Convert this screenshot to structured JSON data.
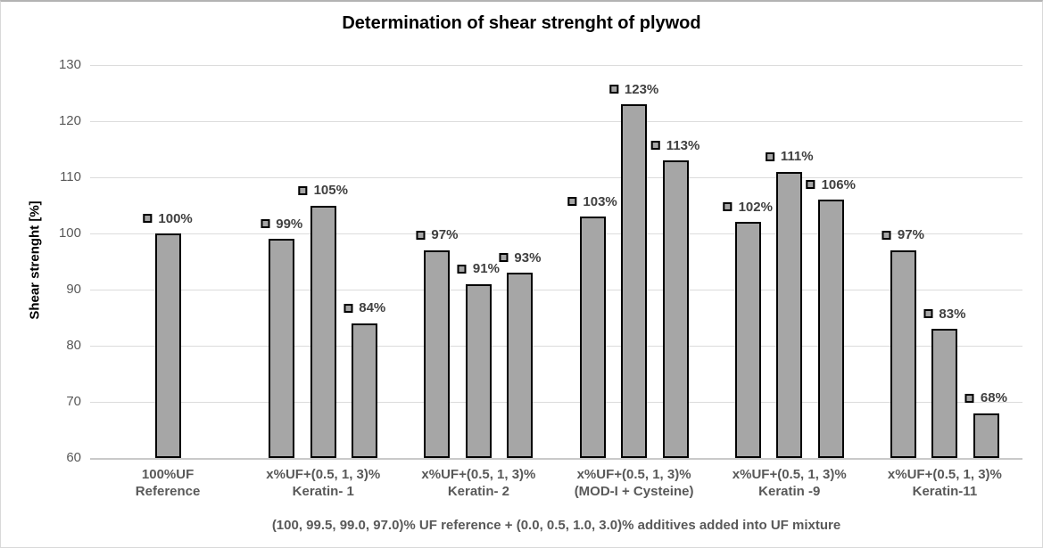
{
  "chart_data": {
    "type": "bar",
    "title": "Determination of shear strenght of plywod",
    "ylabel": "Shear strenght [%]",
    "xlabel": "(100, 99.5, 99.0, 97.0)% UF reference + (0.0, 0.5, 1.0, 3.0)% additives added into UF mixture",
    "ylim": [
      60,
      130
    ],
    "yticks": [
      130,
      120,
      110,
      100,
      90,
      80,
      70,
      60
    ],
    "grid": true,
    "legend_position": "none",
    "data_label_format": "{v}%",
    "groups": [
      {
        "label_lines": [
          "100%UF",
          "Reference"
        ],
        "values": [
          100
        ]
      },
      {
        "label_lines": [
          "x%UF+(0.5, 1, 3)%",
          "Keratin- 1"
        ],
        "values": [
          99,
          105,
          84
        ]
      },
      {
        "label_lines": [
          "x%UF+(0.5, 1, 3)%",
          "Keratin- 2"
        ],
        "values": [
          97,
          91,
          93
        ]
      },
      {
        "label_lines": [
          "x%UF+(0.5, 1, 3)%",
          "(MOD-I + Cysteine)"
        ],
        "values": [
          103,
          123,
          113
        ]
      },
      {
        "label_lines": [
          "x%UF+(0.5, 1, 3)%",
          "Keratin -9"
        ],
        "values": [
          102,
          111,
          106
        ]
      },
      {
        "label_lines": [
          "x%UF+(0.5, 1, 3)%",
          "Keratin-11"
        ],
        "values": [
          97,
          83,
          68
        ]
      }
    ],
    "colors": {
      "background": "#ffffff",
      "frame_border": "#d9d9d9",
      "frame_top": "#b3b3b3",
      "bar_fill": "#a6a6a6",
      "bar_border": "#000000",
      "marker_fill": "#a6a6a6",
      "marker_border": "#000000",
      "gridline": "#dcdcdc",
      "axis_line": "#c9c9c9",
      "tick_label": "#595959",
      "data_label": "#404040",
      "category_label": "#595959",
      "axis_title": "#595959",
      "chart_title": "#000000"
    }
  }
}
